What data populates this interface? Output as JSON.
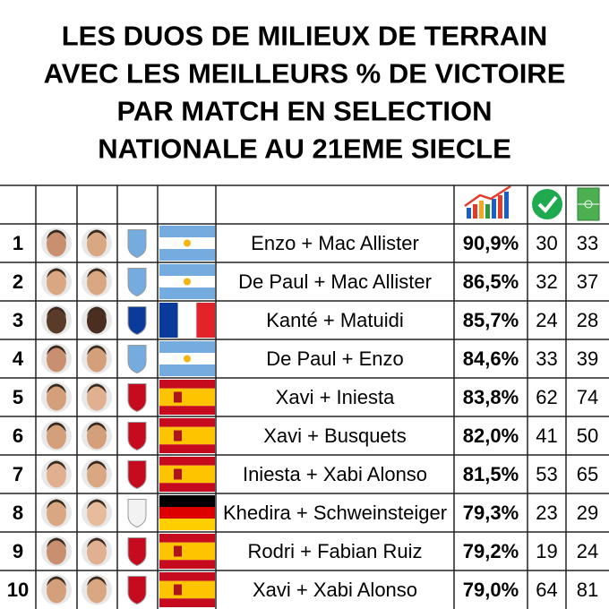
{
  "title": [
    "LES DUOS DE MILIEUX DE TERRAIN",
    "AVEC LES MEILLEURS % DE VICTOIRE",
    "PAR MATCH EN SELECTION",
    "NATIONALE AU 21EME SIECLE"
  ],
  "table": {
    "rows": [
      [
        "1",
        "Enzo + Mac Allister",
        "90,9%",
        "30",
        "33"
      ],
      [
        "2",
        "De Paul + Mac Allister",
        "86,5%",
        "32",
        "37"
      ],
      [
        "3",
        "Kanté + Matuidi",
        "85,7%",
        "24",
        "28"
      ],
      [
        "4",
        "De Paul + Enzo",
        "84,6%",
        "33",
        "39"
      ],
      [
        "5",
        "Xavi + Iniesta",
        "83,8%",
        "62",
        "74"
      ],
      [
        "6",
        "Xavi + Busquets",
        "82,0%",
        "41",
        "50"
      ],
      [
        "7",
        "Iniesta + Xabi Alonso",
        "81,5%",
        "53",
        "65"
      ],
      [
        "8",
        "Khedira + Schweinsteiger",
        "79,3%",
        "23",
        "29"
      ],
      [
        "9",
        "Rodri + Fabian Ruiz",
        "79,2%",
        "19",
        "24"
      ],
      [
        "10",
        "Xavi + Xabi Alonso",
        "79,0%",
        "64",
        "81"
      ]
    ]
  }
}
